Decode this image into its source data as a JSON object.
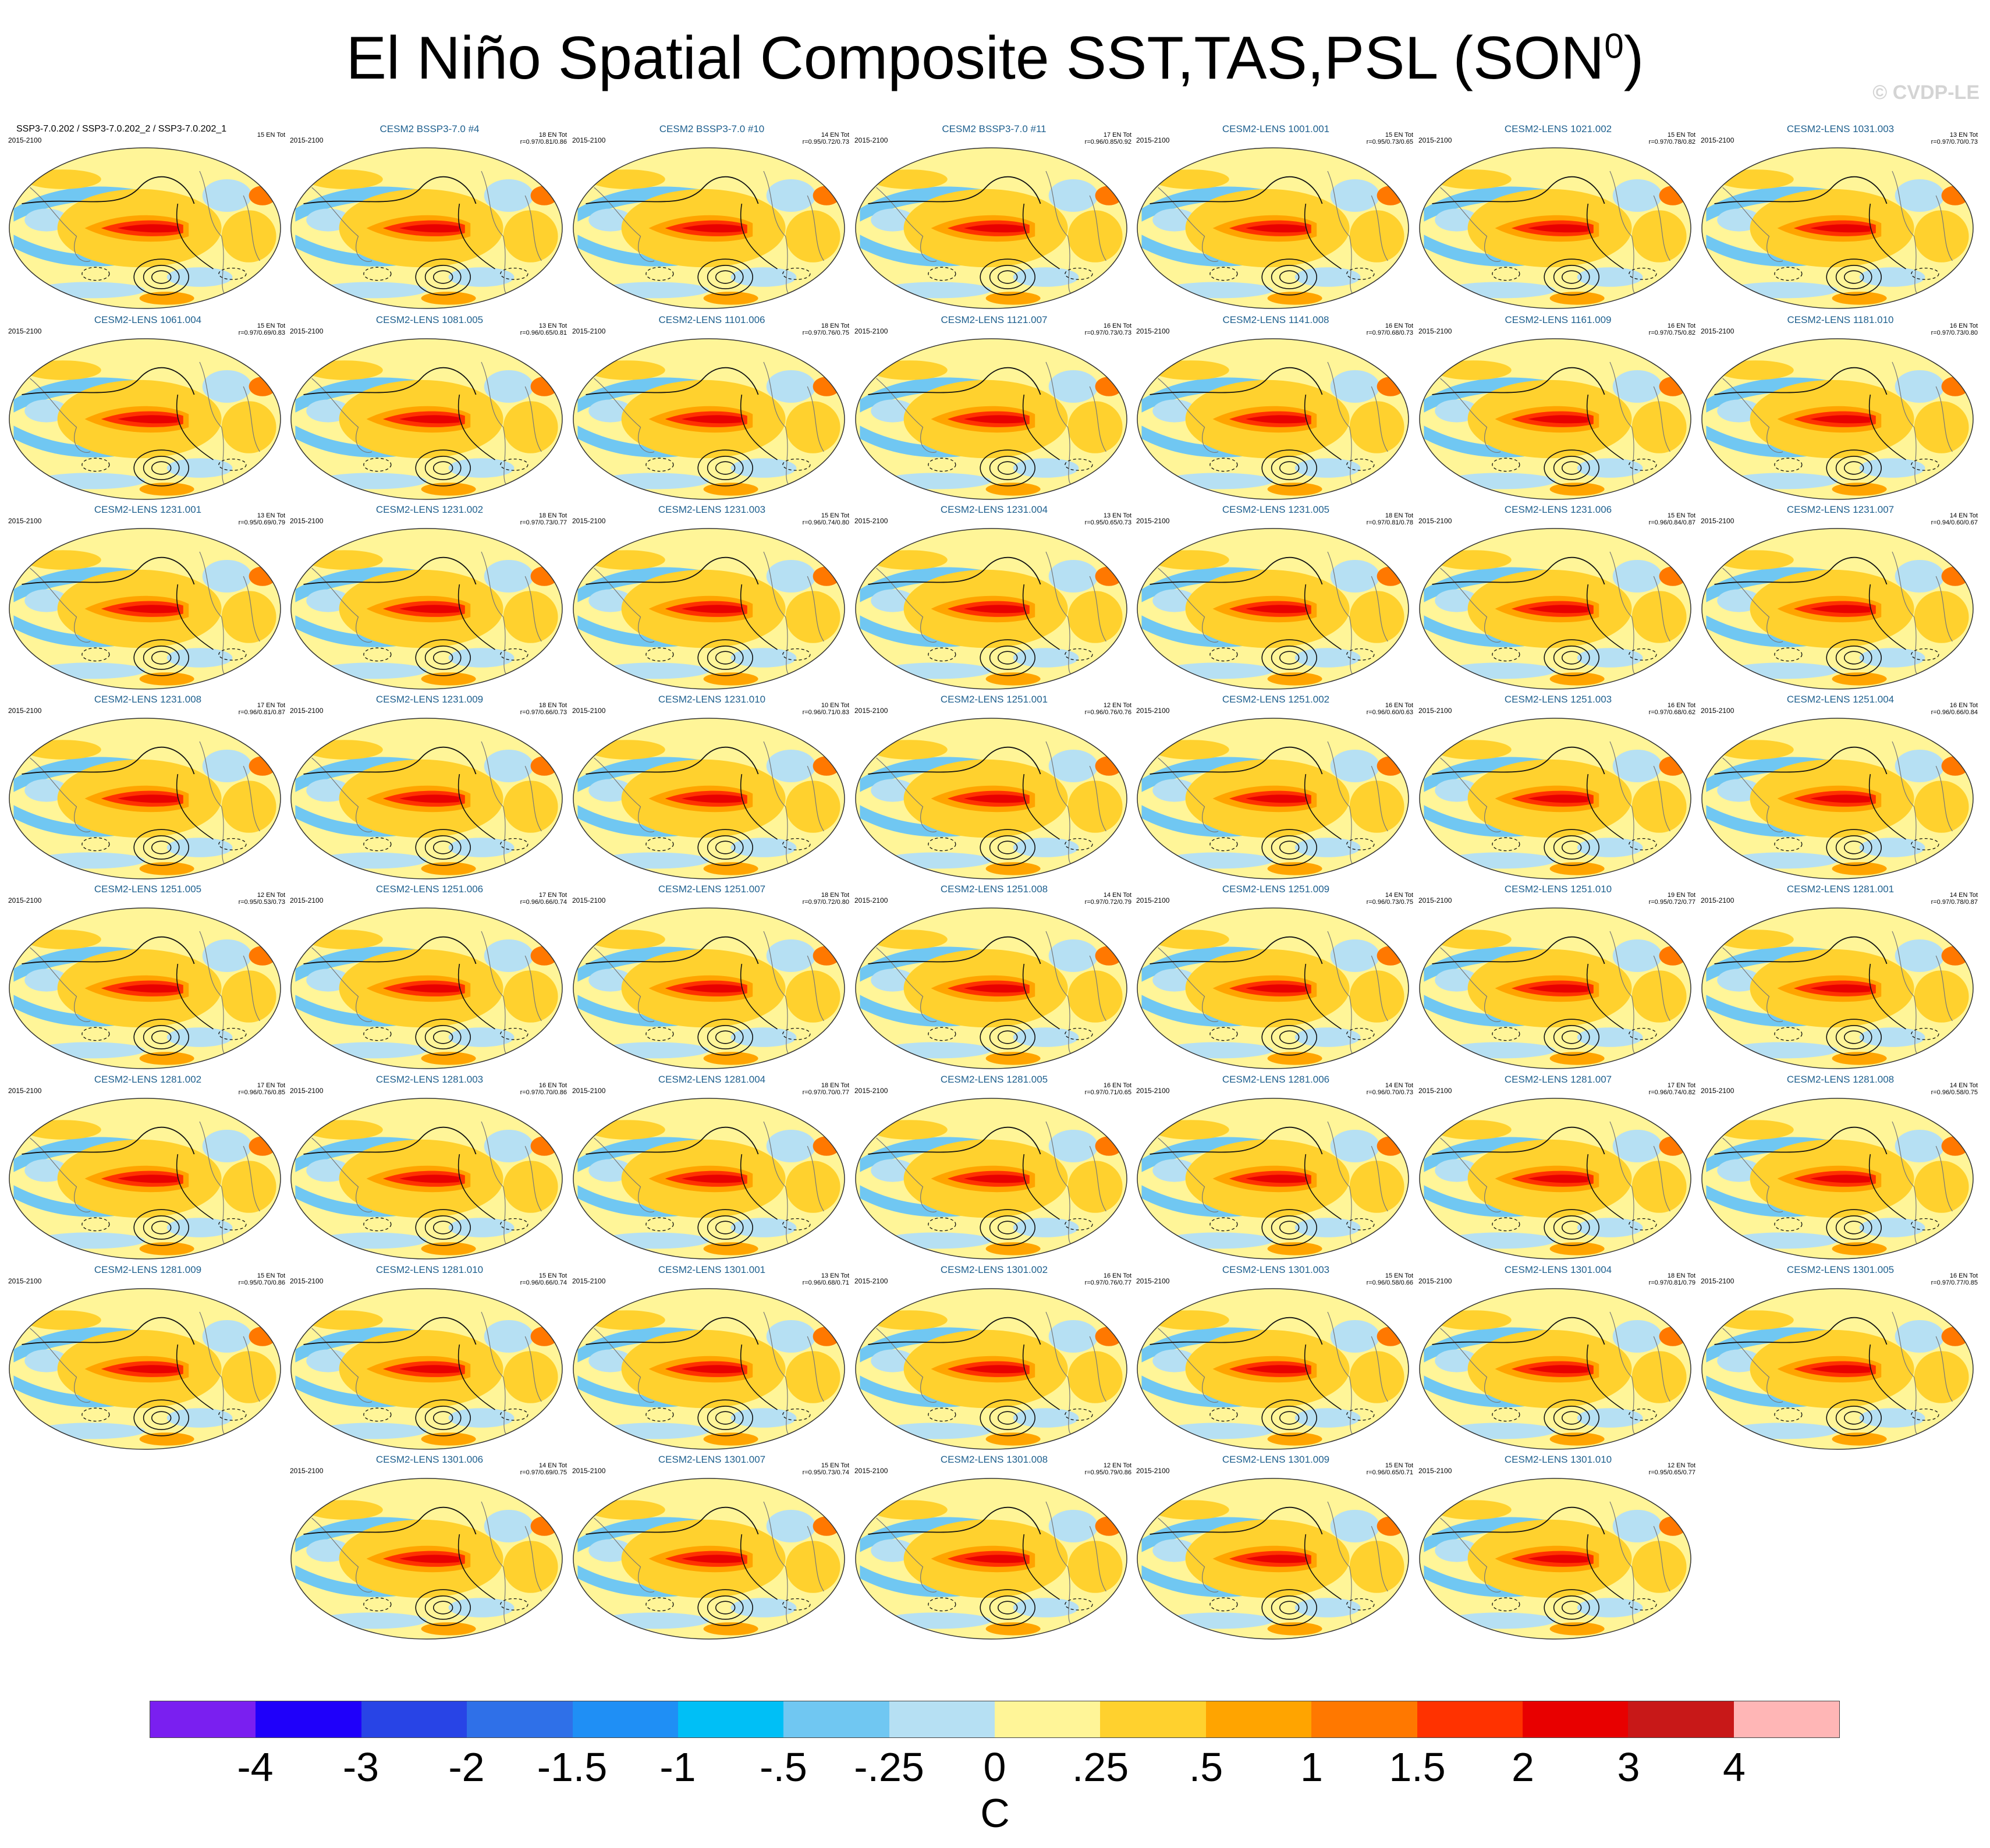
{
  "title_main": "El Niño Spatial Composite SST,TAS,PSL (SON",
  "title_sup": "0",
  "title_end": ")",
  "watermark": "© CVDP-LE",
  "units": "C",
  "chart_data": {
    "type": "heatmap",
    "title": "El Niño Spatial Composite SST,TAS,PSL (SON0)",
    "variables": [
      "SST",
      "TAS",
      "PSL"
    ],
    "season": "SON0",
    "projection": "Robinson (global maps)",
    "colorbar": {
      "units": "C",
      "tick_labels": [
        "-4",
        "-3",
        "-2",
        "-1.5",
        "-1",
        "-.5",
        "-.25",
        "0",
        ".25",
        ".5",
        "1",
        "1.5",
        "2",
        "3",
        "4"
      ],
      "colors": [
        "#7a1ff0",
        "#1f00fa",
        "#2844e6",
        "#2f70e8",
        "#1f8ff5",
        "#00bff6",
        "#70c7f2",
        "#b6e0f3",
        "#fff598",
        "#ffd12e",
        "#ffa400",
        "#ff7800",
        "#ff3200",
        "#e80000",
        "#c81818",
        "#ffb6b6"
      ]
    },
    "panels": [
      {
        "title": "SSP3-7.0.202 / SSP3-7.0.202_2 / SSP3-7.0.202_1",
        "period": "2015-2100",
        "n_events": "15 EN Tot",
        "r": "",
        "observation": true
      },
      {
        "title": "CESM2 BSSP3-7.0 #4",
        "period": "2015-2100",
        "n_events": "18 EN Tot",
        "r": "r=0.97/0.81/0.86"
      },
      {
        "title": "CESM2 BSSP3-7.0 #10",
        "period": "2015-2100",
        "n_events": "14 EN Tot",
        "r": "r=0.95/0.72/0.73"
      },
      {
        "title": "CESM2 BSSP3-7.0 #11",
        "period": "2015-2100",
        "n_events": "17 EN Tot",
        "r": "r=0.96/0.85/0.92"
      },
      {
        "title": "CESM2-LENS 1001.001",
        "period": "2015-2100",
        "n_events": "15 EN Tot",
        "r": "r=0.95/0.73/0.65"
      },
      {
        "title": "CESM2-LENS 1021.002",
        "period": "2015-2100",
        "n_events": "15 EN Tot",
        "r": "r=0.97/0.78/0.82"
      },
      {
        "title": "CESM2-LENS 1031.003",
        "period": "2015-2100",
        "n_events": "13 EN Tot",
        "r": "r=0.97/0.70/0.73"
      },
      {
        "title": "CESM2-LENS 1061.004",
        "period": "2015-2100",
        "n_events": "15 EN Tot",
        "r": "r=0.97/0.69/0.83"
      },
      {
        "title": "CESM2-LENS 1081.005",
        "period": "2015-2100",
        "n_events": "13 EN Tot",
        "r": "r=0.96/0.65/0.81"
      },
      {
        "title": "CESM2-LENS 1101.006",
        "period": "2015-2100",
        "n_events": "18 EN Tot",
        "r": "r=0.97/0.76/0.75"
      },
      {
        "title": "CESM2-LENS 1121.007",
        "period": "2015-2100",
        "n_events": "16 EN Tot",
        "r": "r=0.97/0.73/0.73"
      },
      {
        "title": "CESM2-LENS 1141.008",
        "period": "2015-2100",
        "n_events": "16 EN Tot",
        "r": "r=0.97/0.68/0.73"
      },
      {
        "title": "CESM2-LENS 1161.009",
        "period": "2015-2100",
        "n_events": "16 EN Tot",
        "r": "r=0.97/0.75/0.82"
      },
      {
        "title": "CESM2-LENS 1181.010",
        "period": "2015-2100",
        "n_events": "16 EN Tot",
        "r": "r=0.97/0.73/0.80"
      },
      {
        "title": "CESM2-LENS 1231.001",
        "period": "2015-2100",
        "n_events": "13 EN Tot",
        "r": "r=0.95/0.69/0.79"
      },
      {
        "title": "CESM2-LENS 1231.002",
        "period": "2015-2100",
        "n_events": "18 EN Tot",
        "r": "r=0.97/0.73/0.77"
      },
      {
        "title": "CESM2-LENS 1231.003",
        "period": "2015-2100",
        "n_events": "15 EN Tot",
        "r": "r=0.96/0.74/0.80"
      },
      {
        "title": "CESM2-LENS 1231.004",
        "period": "2015-2100",
        "n_events": "13 EN Tot",
        "r": "r=0.95/0.65/0.73"
      },
      {
        "title": "CESM2-LENS 1231.005",
        "period": "2015-2100",
        "n_events": "18 EN Tot",
        "r": "r=0.97/0.81/0.78"
      },
      {
        "title": "CESM2-LENS 1231.006",
        "period": "2015-2100",
        "n_events": "15 EN Tot",
        "r": "r=0.96/0.84/0.87"
      },
      {
        "title": "CESM2-LENS 1231.007",
        "period": "2015-2100",
        "n_events": "14 EN Tot",
        "r": "r=0.94/0.60/0.67"
      },
      {
        "title": "CESM2-LENS 1231.008",
        "period": "2015-2100",
        "n_events": "17 EN Tot",
        "r": "r=0.96/0.81/0.87"
      },
      {
        "title": "CESM2-LENS 1231.009",
        "period": "2015-2100",
        "n_events": "18 EN Tot",
        "r": "r=0.97/0.66/0.73"
      },
      {
        "title": "CESM2-LENS 1231.010",
        "period": "2015-2100",
        "n_events": "10 EN Tot",
        "r": "r=0.96/0.71/0.83"
      },
      {
        "title": "CESM2-LENS 1251.001",
        "period": "2015-2100",
        "n_events": "12 EN Tot",
        "r": "r=0.96/0.76/0.76"
      },
      {
        "title": "CESM2-LENS 1251.002",
        "period": "2015-2100",
        "n_events": "16 EN Tot",
        "r": "r=0.96/0.60/0.63"
      },
      {
        "title": "CESM2-LENS 1251.003",
        "period": "2015-2100",
        "n_events": "16 EN Tot",
        "r": "r=0.97/0.68/0.62"
      },
      {
        "title": "CESM2-LENS 1251.004",
        "period": "2015-2100",
        "n_events": "16 EN Tot",
        "r": "r=0.96/0.66/0.84"
      },
      {
        "title": "CESM2-LENS 1251.005",
        "period": "2015-2100",
        "n_events": "12 EN Tot",
        "r": "r=0.95/0.53/0.73"
      },
      {
        "title": "CESM2-LENS 1251.006",
        "period": "2015-2100",
        "n_events": "17 EN Tot",
        "r": "r=0.96/0.66/0.74"
      },
      {
        "title": "CESM2-LENS 1251.007",
        "period": "2015-2100",
        "n_events": "18 EN Tot",
        "r": "r=0.97/0.72/0.80"
      },
      {
        "title": "CESM2-LENS 1251.008",
        "period": "2015-2100",
        "n_events": "14 EN Tot",
        "r": "r=0.97/0.72/0.79"
      },
      {
        "title": "CESM2-LENS 1251.009",
        "period": "2015-2100",
        "n_events": "14 EN Tot",
        "r": "r=0.96/0.73/0.75"
      },
      {
        "title": "CESM2-LENS 1251.010",
        "period": "2015-2100",
        "n_events": "19 EN Tot",
        "r": "r=0.95/0.72/0.77"
      },
      {
        "title": "CESM2-LENS 1281.001",
        "period": "2015-2100",
        "n_events": "14 EN Tot",
        "r": "r=0.97/0.78/0.87"
      },
      {
        "title": "CESM2-LENS 1281.002",
        "period": "2015-2100",
        "n_events": "17 EN Tot",
        "r": "r=0.96/0.76/0.85"
      },
      {
        "title": "CESM2-LENS 1281.003",
        "period": "2015-2100",
        "n_events": "16 EN Tot",
        "r": "r=0.97/0.70/0.86"
      },
      {
        "title": "CESM2-LENS 1281.004",
        "period": "2015-2100",
        "n_events": "18 EN Tot",
        "r": "r=0.97/0.70/0.77"
      },
      {
        "title": "CESM2-LENS 1281.005",
        "period": "2015-2100",
        "n_events": "16 EN Tot",
        "r": "r=0.97/0.71/0.65"
      },
      {
        "title": "CESM2-LENS 1281.006",
        "period": "2015-2100",
        "n_events": "14 EN Tot",
        "r": "r=0.96/0.70/0.73"
      },
      {
        "title": "CESM2-LENS 1281.007",
        "period": "2015-2100",
        "n_events": "17 EN Tot",
        "r": "r=0.96/0.74/0.82"
      },
      {
        "title": "CESM2-LENS 1281.008",
        "period": "2015-2100",
        "n_events": "14 EN Tot",
        "r": "r=0.96/0.58/0.75"
      },
      {
        "title": "CESM2-LENS 1281.009",
        "period": "2015-2100",
        "n_events": "15 EN Tot",
        "r": "r=0.95/0.70/0.86"
      },
      {
        "title": "CESM2-LENS 1281.010",
        "period": "2015-2100",
        "n_events": "15 EN Tot",
        "r": "r=0.96/0.66/0.74"
      },
      {
        "title": "CESM2-LENS 1301.001",
        "period": "2015-2100",
        "n_events": "13 EN Tot",
        "r": "r=0.96/0.68/0.71"
      },
      {
        "title": "CESM2-LENS 1301.002",
        "period": "2015-2100",
        "n_events": "16 EN Tot",
        "r": "r=0.97/0.76/0.77"
      },
      {
        "title": "CESM2-LENS 1301.003",
        "period": "2015-2100",
        "n_events": "15 EN Tot",
        "r": "r=0.96/0.58/0.66"
      },
      {
        "title": "CESM2-LENS 1301.004",
        "period": "2015-2100",
        "n_events": "18 EN Tot",
        "r": "r=0.97/0.81/0.79"
      },
      {
        "title": "CESM2-LENS 1301.005",
        "period": "2015-2100",
        "n_events": "16 EN Tot",
        "r": "r=0.97/0.77/0.85"
      },
      {
        "title": "CESM2-LENS 1301.006",
        "period": "2015-2100",
        "n_events": "14 EN Tot",
        "r": "r=0.97/0.69/0.75"
      },
      {
        "title": "CESM2-LENS 1301.007",
        "period": "2015-2100",
        "n_events": "15 EN Tot",
        "r": "r=0.95/0.73/0.74"
      },
      {
        "title": "CESM2-LENS 1301.008",
        "period": "2015-2100",
        "n_events": "12 EN Tot",
        "r": "r=0.95/0.79/0.86"
      },
      {
        "title": "CESM2-LENS 1301.009",
        "period": "2015-2100",
        "n_events": "15 EN Tot",
        "r": "r=0.96/0.65/0.71"
      },
      {
        "title": "CESM2-LENS 1301.010",
        "period": "2015-2100",
        "n_events": "12 EN Tot",
        "r": "r=0.95/0.65/0.77"
      }
    ]
  }
}
